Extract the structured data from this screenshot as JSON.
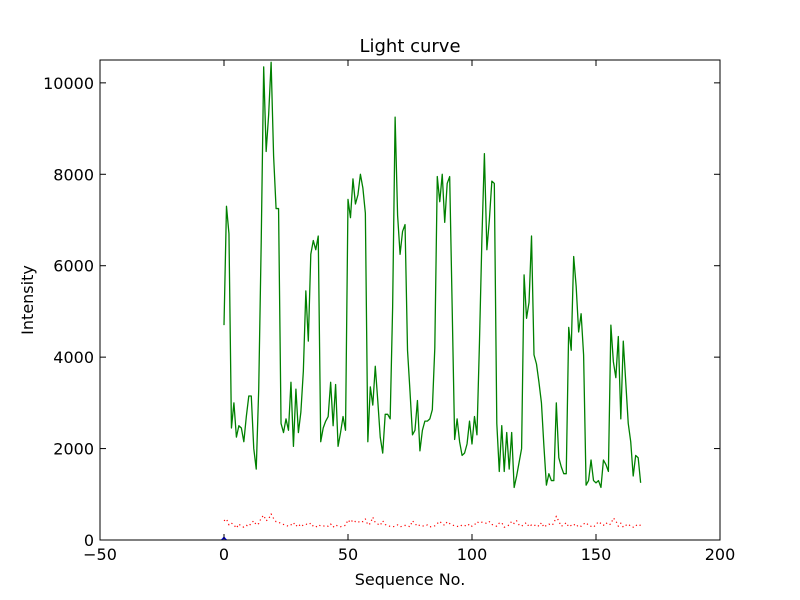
{
  "chart_data": {
    "type": "line",
    "title": "Light curve",
    "xlabel": "Sequence No.",
    "ylabel": "Intensity",
    "xlim": [
      -50,
      200
    ],
    "ylim": [
      0,
      10500
    ],
    "xticks": [
      -50,
      0,
      50,
      100,
      150,
      200
    ],
    "xtick_labels": [
      "−50",
      "0",
      "50",
      "100",
      "150",
      "200"
    ],
    "yticks": [
      0,
      2000,
      4000,
      6000,
      8000,
      10000
    ],
    "ytick_labels": [
      "0",
      "2000",
      "4000",
      "6000",
      "8000",
      "10000"
    ],
    "grid": false,
    "legend": "none",
    "series": [
      {
        "color": "#008000",
        "style": "solid",
        "x": [
          0,
          1,
          2,
          3,
          4,
          5,
          6,
          7,
          8,
          9,
          10,
          11,
          12,
          13,
          14,
          15,
          16,
          17,
          18,
          19,
          20,
          21,
          22,
          23,
          24,
          25,
          26,
          27,
          28,
          29,
          30,
          31,
          32,
          33,
          34,
          35,
          36,
          37,
          38,
          39,
          40,
          41,
          42,
          43,
          44,
          45,
          46,
          47,
          48,
          49,
          50,
          51,
          52,
          53,
          54,
          55,
          56,
          57,
          58,
          59,
          60,
          61,
          62,
          63,
          64,
          65,
          66,
          67,
          68,
          69,
          70,
          71,
          72,
          73,
          74,
          75,
          76,
          77,
          78,
          79,
          80,
          81,
          82,
          83,
          84,
          85,
          86,
          87,
          88,
          89,
          90,
          91,
          92,
          93,
          94,
          95,
          96,
          97,
          98,
          99,
          100,
          101,
          102,
          103,
          104,
          105,
          106,
          107,
          108,
          109,
          110,
          111,
          112,
          113,
          114,
          115,
          116,
          117,
          118,
          119,
          120,
          121,
          122,
          123,
          124,
          125,
          126,
          127,
          128,
          129,
          130,
          131,
          132,
          133,
          134,
          135,
          136,
          137,
          138,
          139,
          140,
          141,
          142,
          143,
          144,
          145,
          146,
          147,
          148,
          149,
          150,
          151,
          152,
          153,
          154,
          155,
          156,
          157,
          158,
          159,
          160,
          161,
          162,
          163,
          164,
          165,
          166,
          167,
          168
        ],
        "y": [
          4700,
          7300,
          6700,
          2450,
          3000,
          2250,
          2500,
          2450,
          2150,
          2700,
          3150,
          3150,
          2000,
          1550,
          3300,
          6500,
          10350,
          8500,
          9300,
          10450,
          8400,
          7250,
          7250,
          2550,
          2350,
          2650,
          2400,
          3450,
          2050,
          3300,
          2350,
          2800,
          3700,
          5450,
          4350,
          6250,
          6550,
          6350,
          6650,
          2150,
          2450,
          2600,
          2700,
          3450,
          2500,
          3400,
          2050,
          2350,
          2700,
          2400,
          7450,
          7050,
          7900,
          7350,
          7550,
          8000,
          7700,
          7150,
          2150,
          3350,
          2950,
          3800,
          3050,
          2250,
          1900,
          2750,
          2750,
          2650,
          5100,
          9250,
          7100,
          6250,
          6750,
          6900,
          4150,
          3250,
          2300,
          2400,
          3050,
          1950,
          2400,
          2600,
          2600,
          2650,
          2850,
          4200,
          7950,
          7400,
          8000,
          6950,
          7800,
          7950,
          5100,
          2200,
          2650,
          2150,
          1850,
          1900,
          2100,
          2600,
          2100,
          2700,
          2300,
          4300,
          6600,
          8450,
          6350,
          7000,
          7850,
          7800,
          2550,
          1500,
          2500,
          1500,
          2350,
          1550,
          2350,
          1150,
          1400,
          1700,
          2000,
          5800,
          4850,
          5200,
          6650,
          4050,
          3850,
          3450,
          3000,
          2050,
          1200,
          1450,
          1300,
          1300,
          3000,
          1800,
          1600,
          1450,
          1450,
          4650,
          4150,
          6200,
          5550,
          4550,
          4950,
          4050,
          1200,
          1300,
          1750,
          1300,
          1250,
          1300,
          1150,
          1750,
          1650,
          1500,
          4700,
          3900,
          3550,
          4450,
          2650,
          4350,
          3450,
          2550,
          2150,
          1400,
          1850,
          1800,
          1250
        ]
      },
      {
        "color": "#ff0000",
        "style": "dotted",
        "x": [
          0,
          1,
          2,
          3,
          4,
          5,
          6,
          7,
          8,
          9,
          10,
          11,
          12,
          13,
          14,
          15,
          16,
          17,
          18,
          19,
          20,
          21,
          22,
          23,
          24,
          25,
          26,
          27,
          28,
          29,
          30,
          31,
          32,
          33,
          34,
          35,
          36,
          37,
          38,
          39,
          40,
          41,
          42,
          43,
          44,
          45,
          46,
          47,
          48,
          49,
          50,
          51,
          52,
          53,
          54,
          55,
          56,
          57,
          58,
          59,
          60,
          61,
          62,
          63,
          64,
          65,
          66,
          67,
          68,
          69,
          70,
          71,
          72,
          73,
          74,
          75,
          76,
          77,
          78,
          79,
          80,
          81,
          82,
          83,
          84,
          85,
          86,
          87,
          88,
          89,
          90,
          91,
          92,
          93,
          94,
          95,
          96,
          97,
          98,
          99,
          100,
          101,
          102,
          103,
          104,
          105,
          106,
          107,
          108,
          109,
          110,
          111,
          112,
          113,
          114,
          115,
          116,
          117,
          118,
          119,
          120,
          121,
          122,
          123,
          124,
          125,
          126,
          127,
          128,
          129,
          130,
          131,
          132,
          133,
          134,
          135,
          136,
          137,
          138,
          139,
          140,
          141,
          142,
          143,
          144,
          145,
          146,
          147,
          148,
          149,
          150,
          151,
          152,
          153,
          154,
          155,
          156,
          157,
          158,
          159,
          160,
          161,
          162,
          163,
          164,
          165,
          166,
          167,
          168
        ],
        "y": [
          420,
          460,
          330,
          370,
          330,
          260,
          350,
          300,
          280,
          320,
          300,
          370,
          420,
          330,
          360,
          480,
          540,
          420,
          460,
          570,
          470,
          400,
          390,
          360,
          340,
          320,
          300,
          330,
          380,
          300,
          350,
          290,
          330,
          350,
          330,
          370,
          300,
          280,
          330,
          310,
          300,
          320,
          300,
          350,
          280,
          330,
          300,
          290,
          310,
          320,
          440,
          380,
          440,
          400,
          380,
          420,
          400,
          460,
          330,
          360,
          500,
          380,
          350,
          320,
          420,
          340,
          310,
          300,
          290,
          300,
          330,
          290,
          300,
          320,
          310,
          290,
          420,
          360,
          300,
          330,
          310,
          300,
          330,
          290,
          290,
          310,
          360,
          410,
          350,
          320,
          400,
          360,
          330,
          310,
          300,
          290,
          330,
          320,
          300,
          350,
          300,
          330,
          400,
          370,
          390,
          380,
          360,
          400,
          340,
          320,
          300,
          370,
          380,
          280,
          300,
          330,
          410,
          360,
          420,
          330,
          300,
          350,
          380,
          290,
          330,
          310,
          340,
          300,
          380,
          280,
          320,
          350,
          320,
          360,
          520,
          410,
          300,
          330,
          380,
          290,
          320,
          350,
          290,
          330,
          300,
          350,
          380,
          320,
          300,
          280,
          340,
          400,
          360,
          320,
          380,
          330,
          350,
          480,
          420,
          300,
          370,
          280,
          320,
          350,
          300,
          280,
          330,
          300,
          330
        ]
      },
      {
        "color": "#0000ff",
        "style": "solid",
        "x": [
          -1,
          0,
          1
        ],
        "y": [
          0,
          60,
          0
        ]
      }
    ]
  }
}
